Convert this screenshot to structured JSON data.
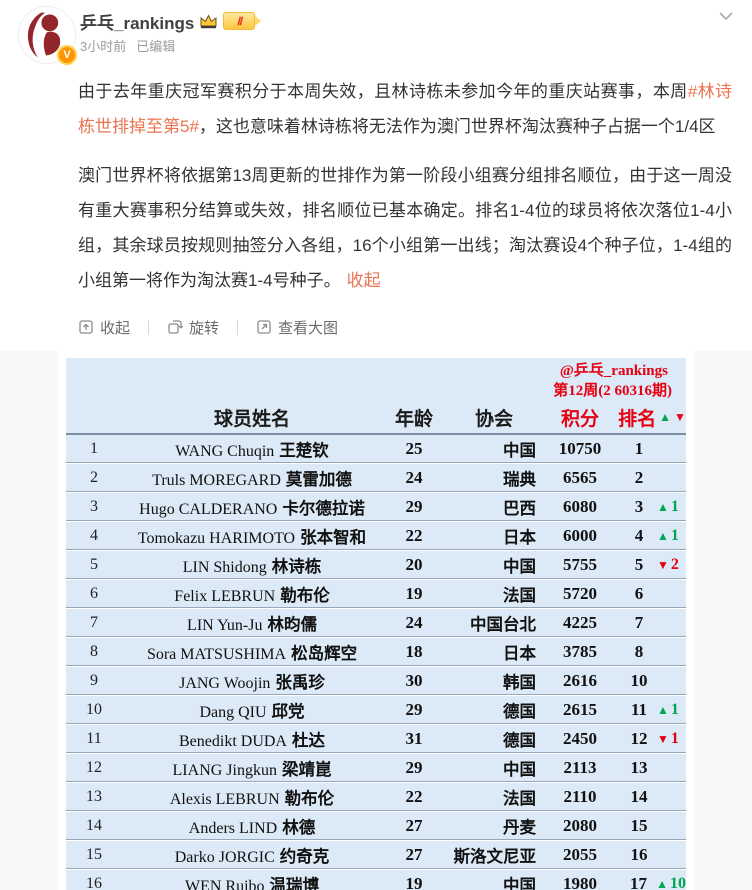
{
  "header": {
    "username": "乒乓_rankings",
    "timestamp": "3小时前",
    "edited_label": "已编辑",
    "level_label": "Ⅱ"
  },
  "post": {
    "para1_before": "由于去年重庆冠军赛积分于本周失效，且林诗栋未参加今年的重庆站赛事，本周",
    "hashtag": "#林诗栋世排掉至第5#",
    "para1_after": "，这也意味着林诗栋将无法作为澳门世界杯淘汰赛种子占据一个1/4区",
    "para2": "澳门世界杯将依据第13周更新的世排作为第一阶段小组赛分组排名顺位，由于这一周没有重大赛事积分结算或失效，排名顺位已基本确定。排名1-4位的球员将依次落位1-4小组，其余球员按规则抽签分入各组，16个小组第一出线；淘汰赛设4个种子位，1-4组的小组第一将作为淘汰赛1-4号种子。",
    "collapse_link": "收起"
  },
  "toolbar": {
    "collapse": "收起",
    "rotate": "旋转",
    "view_large": "查看大图"
  },
  "icons": {
    "up": "▲",
    "down": "▼"
  },
  "colors": {
    "link_orange": "#eb7350",
    "table_red": "#e60012",
    "up_green": "#00a651",
    "row_blue": "#dce9f6"
  },
  "table": {
    "watermark": "@乒乓_rankings",
    "week_label": "第12周(2 60316期)",
    "columns": [
      "球员姓名",
      "年龄",
      "协会",
      "积分",
      "排名"
    ],
    "rows": [
      {
        "no": "1",
        "latin": "WANG Chuqin",
        "cn": "王楚钦",
        "age": "25",
        "assoc": "中国",
        "points": "10750",
        "rank": "1",
        "dir": "",
        "delta": ""
      },
      {
        "no": "2",
        "latin": "Truls MOREGARD",
        "cn": "莫雷加德",
        "age": "24",
        "assoc": "瑞典",
        "points": "6565",
        "rank": "2",
        "dir": "",
        "delta": ""
      },
      {
        "no": "3",
        "latin": "Hugo CALDERANO",
        "cn": "卡尔德拉诺",
        "age": "29",
        "assoc": "巴西",
        "points": "6080",
        "rank": "3",
        "dir": "up",
        "delta": "1"
      },
      {
        "no": "4",
        "latin": "Tomokazu HARIMOTO",
        "cn": "张本智和",
        "age": "22",
        "assoc": "日本",
        "points": "6000",
        "rank": "4",
        "dir": "up",
        "delta": "1"
      },
      {
        "no": "5",
        "latin": "LIN Shidong",
        "cn": "林诗栋",
        "age": "20",
        "assoc": "中国",
        "points": "5755",
        "rank": "5",
        "dir": "down",
        "delta": "2"
      },
      {
        "no": "6",
        "latin": "Felix LEBRUN",
        "cn": "勒布伦",
        "age": "19",
        "assoc": "法国",
        "points": "5720",
        "rank": "6",
        "dir": "",
        "delta": ""
      },
      {
        "no": "7",
        "latin": "LIN Yun-Ju",
        "cn": "林昀儒",
        "age": "24",
        "assoc": "中国台北",
        "points": "4225",
        "rank": "7",
        "dir": "",
        "delta": ""
      },
      {
        "no": "8",
        "latin": "Sora MATSUSHIMA",
        "cn": "松岛辉空",
        "age": "18",
        "assoc": "日本",
        "points": "3785",
        "rank": "8",
        "dir": "",
        "delta": ""
      },
      {
        "no": "9",
        "latin": "JANG Woojin",
        "cn": "张禹珍",
        "age": "30",
        "assoc": "韩国",
        "points": "2616",
        "rank": "10",
        "dir": "",
        "delta": ""
      },
      {
        "no": "10",
        "latin": "Dang QIU",
        "cn": "邱党",
        "age": "29",
        "assoc": "德国",
        "points": "2615",
        "rank": "11",
        "dir": "up",
        "delta": "1"
      },
      {
        "no": "11",
        "latin": "Benedikt DUDA",
        "cn": "杜达",
        "age": "31",
        "assoc": "德国",
        "points": "2450",
        "rank": "12",
        "dir": "down",
        "delta": "1"
      },
      {
        "no": "12",
        "latin": "LIANG Jingkun",
        "cn": "梁靖崑",
        "age": "29",
        "assoc": "中国",
        "points": "2113",
        "rank": "13",
        "dir": "",
        "delta": ""
      },
      {
        "no": "13",
        "latin": "Alexis LEBRUN",
        "cn": "勒布伦",
        "age": "22",
        "assoc": "法国",
        "points": "2110",
        "rank": "14",
        "dir": "",
        "delta": ""
      },
      {
        "no": "14",
        "latin": "Anders LIND",
        "cn": "林德",
        "age": "27",
        "assoc": "丹麦",
        "points": "2080",
        "rank": "15",
        "dir": "",
        "delta": ""
      },
      {
        "no": "15",
        "latin": "Darko JORGIC",
        "cn": "约奇克",
        "age": "27",
        "assoc": "斯洛文尼亚",
        "points": "2055",
        "rank": "16",
        "dir": "",
        "delta": ""
      },
      {
        "no": "16",
        "latin": "WEN Ruibo",
        "cn": "温瑞博",
        "age": "19",
        "assoc": "中国",
        "points": "1980",
        "rank": "17",
        "dir": "up",
        "delta": "10"
      }
    ]
  }
}
